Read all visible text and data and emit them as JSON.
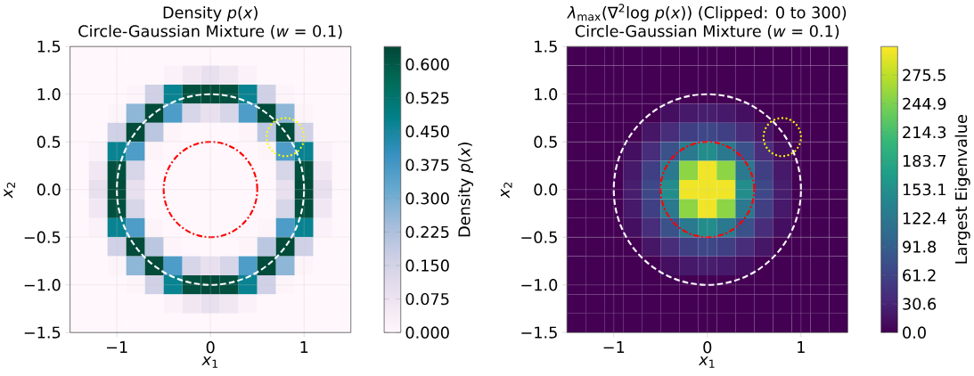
{
  "chart_data": [
    {
      "type": "heatmap",
      "title": "Density *p*(*x*)",
      "subtitle": "Circle-Gaussian Mixture (*w* = 0.1)",
      "xlabel": "*x*$_{1}$",
      "ylabel": "*x*$_{2}$",
      "clabel": "Density *p*(*x*)",
      "x": [
        -1.4,
        -1.2,
        -1.0,
        -0.8,
        -0.6,
        -0.4,
        -0.2,
        0,
        0.2,
        0.4,
        0.6,
        0.8,
        1.0,
        1.2,
        1.4
      ],
      "y": [
        1.4,
        1.2,
        1.0,
        0.8,
        0.6,
        0.4,
        0.2,
        0,
        -0.2,
        -0.4,
        -0.6,
        -0.8,
        -1.0,
        -1.2,
        -1.4
      ],
      "cells": [
        [
          0,
          0,
          0,
          0,
          0,
          0,
          0,
          0,
          0,
          0,
          0,
          0,
          0,
          0,
          0
        ],
        [
          0,
          0,
          0,
          0,
          0,
          0.02,
          0.06,
          0.09,
          0.06,
          0.02,
          0,
          0,
          0,
          0,
          0
        ],
        [
          0,
          0,
          0,
          0.01,
          0.16,
          0.47,
          0.62,
          0.63,
          0.62,
          0.47,
          0.16,
          0.01,
          0,
          0,
          0
        ],
        [
          0,
          0,
          0.01,
          0.27,
          0.63,
          0.36,
          0.14,
          0.09,
          0.14,
          0.36,
          0.63,
          0.27,
          0.01,
          0,
          0
        ],
        [
          0,
          0,
          0.16,
          0.63,
          0.2,
          0.01,
          0,
          0,
          0,
          0.01,
          0.2,
          0.63,
          0.16,
          0,
          0
        ],
        [
          0,
          0.02,
          0.47,
          0.36,
          0.01,
          0,
          0,
          0,
          0,
          0,
          0.01,
          0.36,
          0.47,
          0.02,
          0
        ],
        [
          0,
          0.06,
          0.62,
          0.14,
          0,
          0,
          0,
          0,
          0,
          0,
          0,
          0.14,
          0.62,
          0.06,
          0
        ],
        [
          0,
          0.09,
          0.63,
          0.09,
          0,
          0,
          0,
          0,
          0,
          0,
          0,
          0.09,
          0.63,
          0.09,
          0
        ],
        [
          0,
          0.06,
          0.62,
          0.14,
          0,
          0,
          0,
          0,
          0,
          0,
          0,
          0.14,
          0.62,
          0.06,
          0
        ],
        [
          0,
          0.02,
          0.47,
          0.36,
          0.01,
          0,
          0,
          0,
          0,
          0,
          0.01,
          0.36,
          0.47,
          0.02,
          0
        ],
        [
          0,
          0,
          0.16,
          0.63,
          0.2,
          0.01,
          0,
          0,
          0,
          0.01,
          0.2,
          0.63,
          0.16,
          0,
          0
        ],
        [
          0,
          0,
          0.01,
          0.27,
          0.63,
          0.36,
          0.14,
          0.09,
          0.14,
          0.36,
          0.63,
          0.27,
          0.01,
          0,
          0
        ],
        [
          0,
          0,
          0,
          0.01,
          0.16,
          0.47,
          0.62,
          0.63,
          0.62,
          0.47,
          0.16,
          0.01,
          0,
          0,
          0
        ],
        [
          0,
          0,
          0,
          0,
          0,
          0.02,
          0.06,
          0.09,
          0.06,
          0.02,
          0,
          0,
          0,
          0,
          0
        ],
        [
          0,
          0,
          0,
          0,
          0,
          0,
          0,
          0,
          0,
          0,
          0,
          0,
          0,
          0,
          0
        ]
      ],
      "clim": [
        0,
        0.64
      ],
      "cticks": [
        {
          "value": 0,
          "label": "0.000"
        },
        {
          "value": 0.075,
          "label": "0.075"
        },
        {
          "value": 0.15,
          "label": "0.150"
        },
        {
          "value": 0.225,
          "label": "0.225"
        },
        {
          "value": 0.3,
          "label": "0.300"
        },
        {
          "value": 0.375,
          "label": "0.375"
        },
        {
          "value": 0.45,
          "label": "0.450"
        },
        {
          "value": 0.525,
          "label": "0.525"
        },
        {
          "value": 0.6,
          "label": "0.600"
        }
      ],
      "xlim": [
        -1.5,
        1.5
      ],
      "ylim": [
        -1.5,
        1.5
      ],
      "xticks": [
        {
          "value": -1,
          "label": "−1"
        },
        0,
        1
      ],
      "yticks": [
        {
          "value": -1.5,
          "label": "−1.5"
        },
        {
          "value": -1,
          "label": "−1.0"
        },
        {
          "value": -0.5,
          "label": "−0.5"
        },
        {
          "value": 0,
          "label": "0.0"
        },
        {
          "value": 0.5,
          "label": "0.5"
        },
        {
          "value": 1,
          "label": "1.0"
        },
        {
          "value": 1.5,
          "label": "1.5"
        }
      ],
      "grid": true
    },
    {
      "type": "heatmap",
      "title": "*λ*$_{max}$(∇$^{2}$log *p*(*x*)) (Clipped: 0 to 300)",
      "subtitle": "Circle-Gaussian Mixture (*w* = 0.1)",
      "xlabel": "*x*$_{1}$",
      "ylabel": "*x*$_{2}$",
      "clabel": "Largest Eigenvalue",
      "x": [
        -1.4,
        -1.2,
        -1.0,
        -0.8,
        -0.6,
        -0.4,
        -0.2,
        0,
        0.2,
        0.4,
        0.6,
        0.8,
        1.0,
        1.2,
        1.4
      ],
      "y": [
        1.4,
        1.2,
        1.0,
        0.8,
        0.6,
        0.4,
        0.2,
        0,
        -0.2,
        -0.4,
        -0.6,
        -0.8,
        -1.0,
        -1.2,
        -1.4
      ],
      "cells": [
        [
          0,
          0,
          0,
          0,
          0,
          0,
          0,
          0,
          0,
          0,
          0,
          0,
          0,
          0,
          0
        ],
        [
          0,
          0,
          0,
          0,
          0,
          0,
          0,
          0,
          0,
          0,
          0,
          0,
          0,
          0,
          0
        ],
        [
          0,
          0,
          0,
          0,
          0,
          0,
          0,
          0,
          0,
          0,
          0,
          0,
          0,
          0,
          0
        ],
        [
          0,
          0,
          0,
          0,
          0,
          12,
          21,
          25,
          21,
          12,
          0,
          0,
          0,
          0,
          0
        ],
        [
          0,
          0,
          0,
          0,
          18,
          39,
          58,
          67,
          58,
          39,
          18,
          0,
          0,
          0,
          0
        ],
        [
          0,
          0,
          0,
          12,
          39,
          77,
          124,
          150,
          124,
          77,
          39,
          12,
          0,
          0,
          0
        ],
        [
          0,
          0,
          0,
          21,
          58,
          124,
          253,
          300,
          253,
          124,
          58,
          21,
          0,
          0,
          0
        ],
        [
          0,
          0,
          0,
          25,
          67,
          150,
          300,
          300,
          300,
          150,
          67,
          25,
          0,
          0,
          0
        ],
        [
          0,
          0,
          0,
          21,
          58,
          124,
          253,
          300,
          253,
          124,
          58,
          21,
          0,
          0,
          0
        ],
        [
          0,
          0,
          0,
          12,
          39,
          77,
          124,
          150,
          124,
          77,
          39,
          12,
          0,
          0,
          0
        ],
        [
          0,
          0,
          0,
          0,
          18,
          39,
          58,
          67,
          58,
          39,
          18,
          0,
          0,
          0,
          0
        ],
        [
          0,
          0,
          0,
          0,
          0,
          12,
          21,
          25,
          21,
          12,
          0,
          0,
          0,
          0,
          0
        ],
        [
          0,
          0,
          0,
          0,
          0,
          0,
          0,
          0,
          0,
          0,
          0,
          0,
          0,
          0,
          0
        ],
        [
          0,
          0,
          0,
          0,
          0,
          0,
          0,
          0,
          0,
          0,
          0,
          0,
          0,
          0,
          0
        ],
        [
          0,
          0,
          0,
          0,
          0,
          0,
          0,
          0,
          0,
          0,
          0,
          0,
          0,
          0,
          0
        ]
      ],
      "clim": [
        0,
        306.1
      ],
      "cticks": [
        {
          "value": 0,
          "label": "0.0"
        },
        30.6,
        61.2,
        91.8,
        122.4,
        153.1,
        183.7,
        214.3,
        244.9,
        275.5
      ],
      "xlim": [
        -1.5,
        1.5
      ],
      "ylim": [
        -1.5,
        1.5
      ],
      "xticks": [
        {
          "value": -1,
          "label": "−1"
        },
        0,
        1
      ],
      "yticks": [
        {
          "value": -1.5,
          "label": "−1.5"
        },
        {
          "value": -1,
          "label": "−1.0"
        },
        {
          "value": -0.5,
          "label": "−0.5"
        },
        {
          "value": 0,
          "label": "0.0"
        },
        {
          "value": 0.5,
          "label": "0.5"
        },
        {
          "value": 1,
          "label": "1.0"
        },
        {
          "value": 1.5,
          "label": "1.5"
        }
      ],
      "grid": true
    }
  ]
}
